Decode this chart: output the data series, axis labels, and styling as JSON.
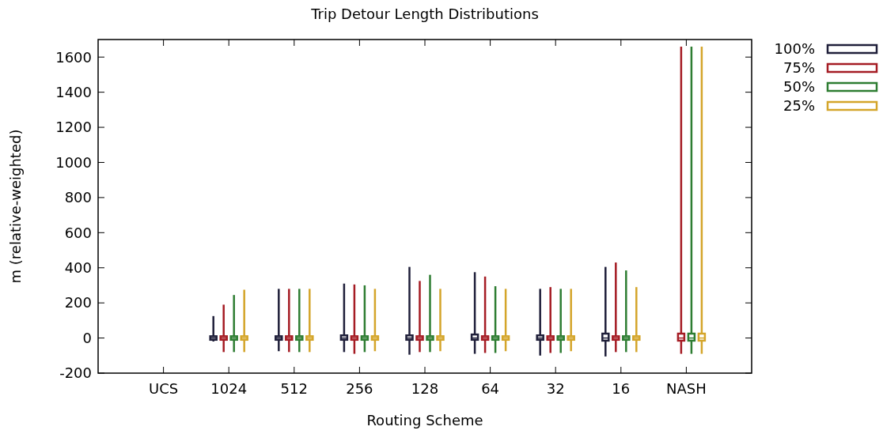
{
  "chart_data": {
    "type": "box",
    "title": "Trip Detour Length Distributions",
    "xlabel": "Routing Scheme",
    "ylabel": "m (relative-weighted)",
    "categories": [
      "UCS",
      "1024",
      "512",
      "256",
      "128",
      "64",
      "32",
      "16",
      "NASH"
    ],
    "ylim": [
      -200,
      1700
    ],
    "yticks": [
      -200,
      0,
      200,
      400,
      600,
      800,
      1000,
      1200,
      1400,
      1600
    ],
    "grid": false,
    "legend": "top right",
    "series": [
      {
        "name": "100%",
        "color": "#1f1f3a",
        "boxes": [
          null,
          {
            "low": -20,
            "q1": -10,
            "median": 0,
            "q3": 10,
            "high": 125
          },
          {
            "low": -75,
            "q1": -10,
            "median": 0,
            "q3": 10,
            "high": 280
          },
          {
            "low": -80,
            "q1": -10,
            "median": 0,
            "q3": 15,
            "high": 310
          },
          {
            "low": -95,
            "q1": -10,
            "median": 0,
            "q3": 15,
            "high": 405
          },
          {
            "low": -90,
            "q1": -10,
            "median": 0,
            "q3": 20,
            "high": 375
          },
          {
            "low": -100,
            "q1": -10,
            "median": 0,
            "q3": 15,
            "high": 280
          },
          {
            "low": -105,
            "q1": -15,
            "median": 0,
            "q3": 25,
            "high": 405
          },
          null
        ]
      },
      {
        "name": "75%",
        "color": "#a51c24",
        "boxes": [
          null,
          {
            "low": -80,
            "q1": -10,
            "median": 0,
            "q3": 10,
            "high": 190
          },
          {
            "low": -80,
            "q1": -10,
            "median": 0,
            "q3": 10,
            "high": 280
          },
          {
            "low": -90,
            "q1": -10,
            "median": 0,
            "q3": 10,
            "high": 305
          },
          {
            "low": -80,
            "q1": -10,
            "median": 0,
            "q3": 10,
            "high": 325
          },
          {
            "low": -85,
            "q1": -10,
            "median": 0,
            "q3": 10,
            "high": 350
          },
          {
            "low": -85,
            "q1": -10,
            "median": 0,
            "q3": 10,
            "high": 290
          },
          {
            "low": -80,
            "q1": -10,
            "median": 0,
            "q3": 10,
            "high": 430
          },
          {
            "low": -90,
            "q1": -15,
            "median": 0,
            "q3": 25,
            "high": 1660
          }
        ]
      },
      {
        "name": "50%",
        "color": "#2e7d32",
        "boxes": [
          null,
          {
            "low": -80,
            "q1": -10,
            "median": 0,
            "q3": 10,
            "high": 245
          },
          {
            "low": -80,
            "q1": -10,
            "median": 0,
            "q3": 10,
            "high": 280
          },
          {
            "low": -80,
            "q1": -10,
            "median": 0,
            "q3": 10,
            "high": 300
          },
          {
            "low": -80,
            "q1": -10,
            "median": 0,
            "q3": 10,
            "high": 360
          },
          {
            "low": -85,
            "q1": -10,
            "median": 0,
            "q3": 10,
            "high": 295
          },
          {
            "low": -85,
            "q1": -10,
            "median": 0,
            "q3": 10,
            "high": 280
          },
          {
            "low": -80,
            "q1": -10,
            "median": 0,
            "q3": 10,
            "high": 385
          },
          {
            "low": -90,
            "q1": -15,
            "median": 0,
            "q3": 25,
            "high": 1660
          }
        ]
      },
      {
        "name": "25%",
        "color": "#d4a52a",
        "boxes": [
          null,
          {
            "low": -80,
            "q1": -10,
            "median": 0,
            "q3": 10,
            "high": 275
          },
          {
            "low": -80,
            "q1": -10,
            "median": 0,
            "q3": 10,
            "high": 280
          },
          {
            "low": -75,
            "q1": -10,
            "median": 0,
            "q3": 10,
            "high": 280
          },
          {
            "low": -75,
            "q1": -10,
            "median": 0,
            "q3": 10,
            "high": 280
          },
          {
            "low": -75,
            "q1": -10,
            "median": 0,
            "q3": 10,
            "high": 280
          },
          {
            "low": -75,
            "q1": -10,
            "median": 0,
            "q3": 10,
            "high": 280
          },
          {
            "low": -80,
            "q1": -10,
            "median": 0,
            "q3": 10,
            "high": 290
          },
          {
            "low": -90,
            "q1": -15,
            "median": 0,
            "q3": 25,
            "high": 1660
          }
        ]
      }
    ]
  }
}
